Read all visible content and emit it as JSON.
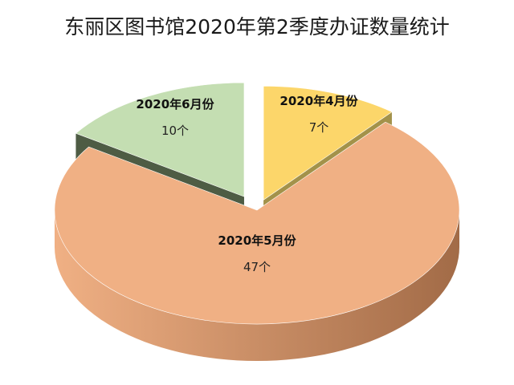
{
  "chart_data": {
    "type": "pie",
    "title": "东丽区图书馆2020年第2季度办证数量统计",
    "unit": "个",
    "slices": [
      {
        "label": "2020年4月份",
        "value": 7,
        "value_label": "7个",
        "color": "#fcd66a",
        "side_color": "#a3924a",
        "exploded": true
      },
      {
        "label": "2020年5月份",
        "value": 47,
        "value_label": "47个",
        "color": "#f0b084",
        "side_color": "#a26b47",
        "exploded": false
      },
      {
        "label": "2020年6月份",
        "value": 10,
        "value_label": "10个",
        "color": "#c4deb2",
        "side_color": "#4e5c44",
        "exploded": true
      }
    ],
    "legend": "none",
    "style": "3d-exploded"
  }
}
